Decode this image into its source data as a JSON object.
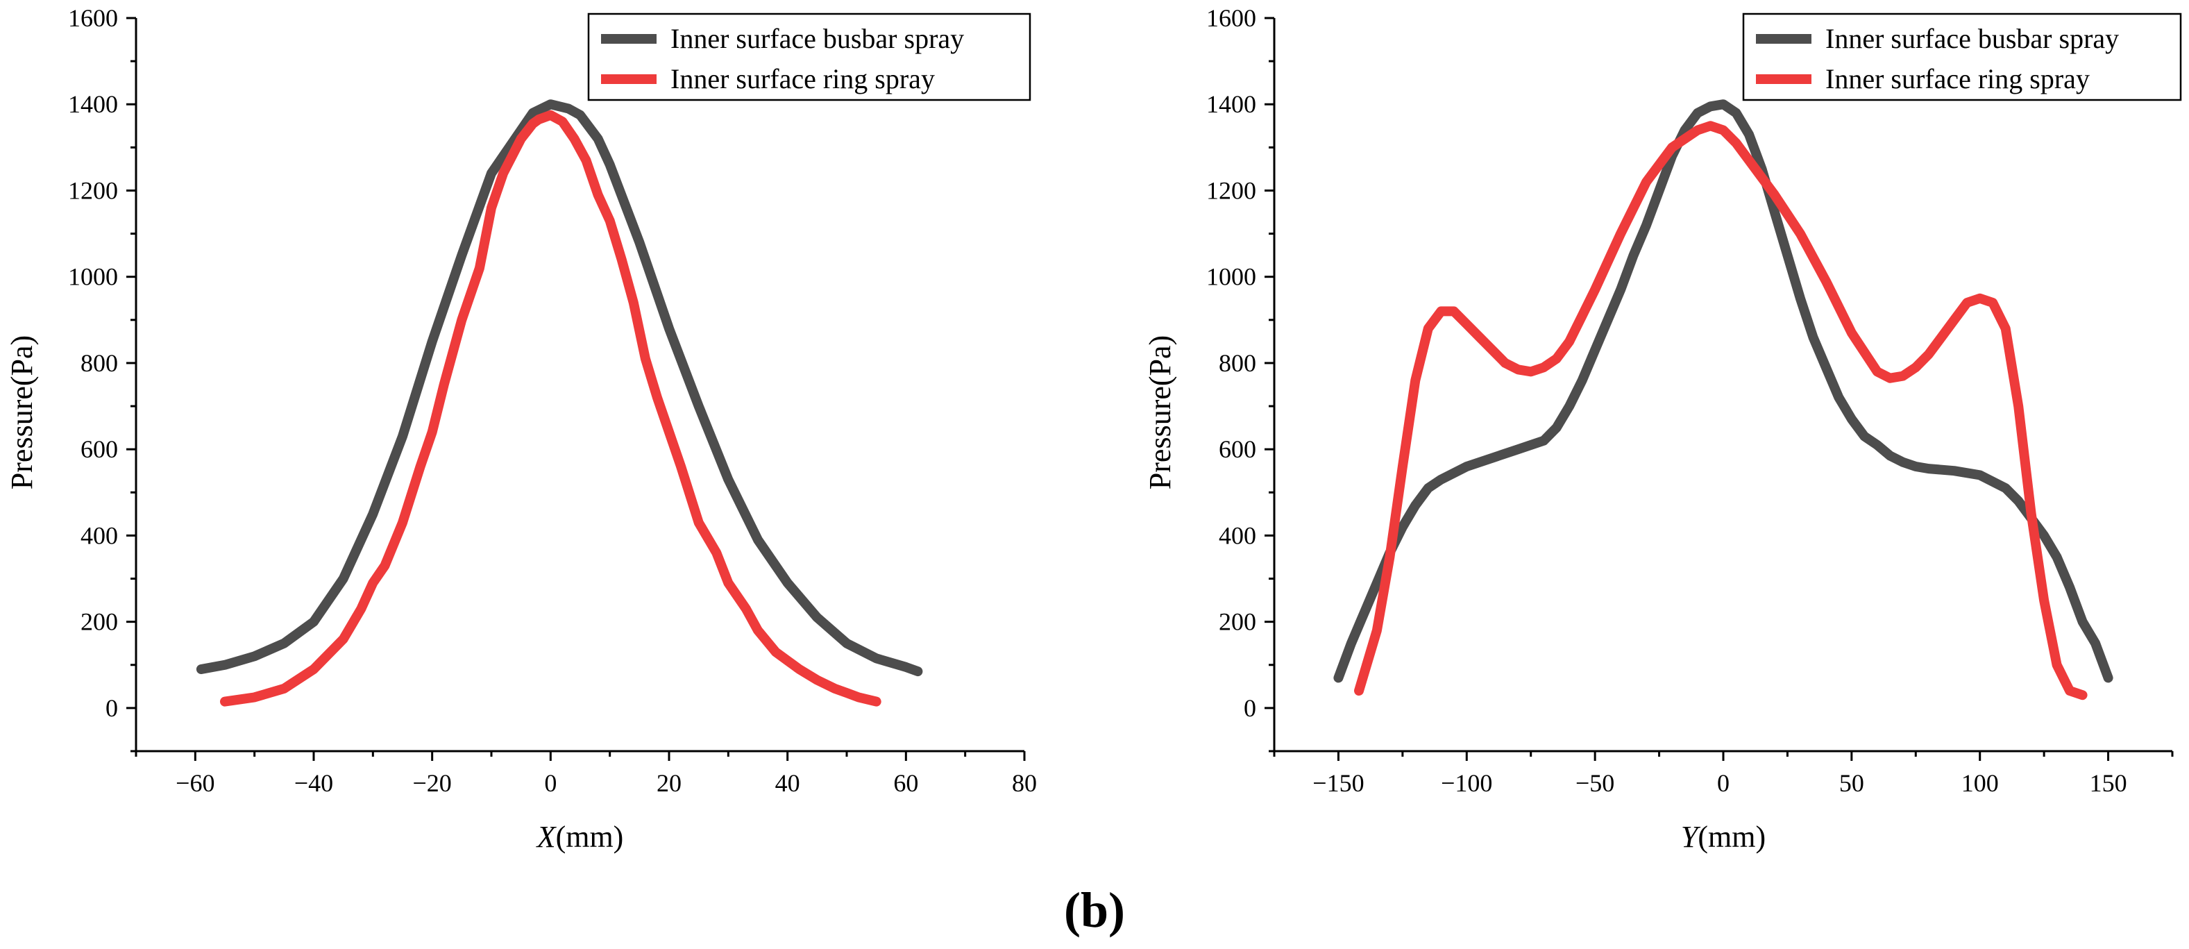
{
  "caption": {
    "open": "(",
    "letter": "b",
    "close": ")"
  },
  "colors": {
    "busbar": "#4d4d4d",
    "ring": "#ee3b3b"
  },
  "chart_data": [
    {
      "type": "line",
      "xlabel_var": "X",
      "xlabel_unit": "(mm)",
      "ylabel": "Pressure(Pa)",
      "xlim": [
        -70,
        80
      ],
      "ylim": [
        -100,
        1600
      ],
      "xticks": [
        -60,
        -40,
        -20,
        0,
        20,
        40,
        60,
        80
      ],
      "xtick_labels": [
        "−60",
        "−40",
        "−20",
        "0",
        "20",
        "40",
        "60",
        "80"
      ],
      "yticks": [
        0,
        200,
        400,
        600,
        800,
        1000,
        1200,
        1400,
        1600
      ],
      "ytick_labels": [
        "0",
        "200",
        "400",
        "600",
        "800",
        "1000",
        "1200",
        "1400",
        "1600"
      ],
      "legend": [
        "Inner surface busbar spray",
        "Inner surface ring spray"
      ],
      "series": [
        {
          "name": "Inner surface busbar spray",
          "x": [
            -59,
            -55,
            -50,
            -45,
            -40,
            -35,
            -30,
            -25,
            -20,
            -15,
            -10,
            -5,
            -3,
            0,
            3,
            5,
            8,
            10,
            15,
            20,
            25,
            30,
            35,
            40,
            45,
            50,
            55,
            60,
            62
          ],
          "y": [
            90,
            100,
            120,
            150,
            200,
            300,
            450,
            630,
            850,
            1050,
            1240,
            1340,
            1380,
            1400,
            1390,
            1375,
            1320,
            1260,
            1080,
            880,
            700,
            530,
            390,
            290,
            210,
            150,
            115,
            95,
            85
          ]
        },
        {
          "name": "Inner surface ring spray",
          "x": [
            -55,
            -50,
            -45,
            -40,
            -35,
            -32,
            -30,
            -28,
            -25,
            -22,
            -20,
            -18,
            -15,
            -12,
            -10,
            -8,
            -5,
            -3,
            -2,
            0,
            2,
            4,
            6,
            8,
            10,
            12,
            14,
            16,
            18,
            20,
            22,
            25,
            28,
            30,
            33,
            35,
            38,
            40,
            42,
            45,
            48,
            50,
            52,
            55
          ],
          "y": [
            15,
            25,
            45,
            90,
            160,
            230,
            290,
            330,
            430,
            560,
            640,
            750,
            900,
            1020,
            1160,
            1240,
            1320,
            1355,
            1365,
            1375,
            1360,
            1320,
            1270,
            1190,
            1130,
            1040,
            940,
            810,
            720,
            640,
            560,
            430,
            360,
            290,
            230,
            180,
            130,
            110,
            90,
            65,
            45,
            35,
            25,
            15
          ]
        }
      ]
    },
    {
      "type": "line",
      "xlabel_var": "Y",
      "xlabel_unit": "(mm)",
      "ylabel": "Pressure(Pa)",
      "xlim": [
        -175,
        175
      ],
      "ylim": [
        -100,
        1600
      ],
      "xticks": [
        -150,
        -100,
        -50,
        0,
        50,
        100,
        150
      ],
      "xtick_labels": [
        "−150",
        "−100",
        "−50",
        "0",
        "50",
        "100",
        "150"
      ],
      "yticks": [
        0,
        200,
        400,
        600,
        800,
        1000,
        1200,
        1400,
        1600
      ],
      "ytick_labels": [
        "0",
        "200",
        "400",
        "600",
        "800",
        "1000",
        "1200",
        "1400",
        "1600"
      ],
      "legend": [
        "Inner surface busbar spray",
        "Inner surface ring spray"
      ],
      "series": [
        {
          "name": "Inner surface busbar spray",
          "x": [
            -150,
            -145,
            -140,
            -135,
            -130,
            -125,
            -120,
            -115,
            -110,
            -100,
            -90,
            -80,
            -70,
            -65,
            -60,
            -55,
            -50,
            -45,
            -40,
            -35,
            -30,
            -25,
            -20,
            -15,
            -10,
            -5,
            0,
            5,
            10,
            15,
            20,
            25,
            30,
            35,
            40,
            45,
            50,
            55,
            60,
            65,
            70,
            75,
            80,
            90,
            100,
            110,
            115,
            120,
            125,
            130,
            135,
            140,
            145,
            150
          ],
          "y": [
            70,
            150,
            220,
            290,
            360,
            420,
            470,
            510,
            530,
            560,
            580,
            600,
            620,
            650,
            700,
            760,
            830,
            900,
            970,
            1050,
            1120,
            1200,
            1280,
            1340,
            1380,
            1395,
            1400,
            1380,
            1330,
            1250,
            1150,
            1050,
            950,
            860,
            790,
            720,
            670,
            630,
            610,
            585,
            570,
            560,
            555,
            550,
            540,
            510,
            480,
            440,
            400,
            350,
            280,
            200,
            150,
            70
          ]
        },
        {
          "name": "Inner surface ring spray",
          "x": [
            -142,
            -135,
            -130,
            -125,
            -120,
            -115,
            -110,
            -105,
            -100,
            -95,
            -90,
            -85,
            -80,
            -75,
            -70,
            -65,
            -60,
            -55,
            -50,
            -40,
            -30,
            -20,
            -10,
            -5,
            0,
            5,
            10,
            20,
            30,
            40,
            50,
            60,
            65,
            70,
            75,
            80,
            85,
            90,
            95,
            100,
            105,
            110,
            115,
            120,
            125,
            130,
            135,
            140
          ],
          "y": [
            40,
            180,
            350,
            560,
            760,
            880,
            920,
            920,
            890,
            860,
            830,
            800,
            785,
            780,
            790,
            810,
            850,
            910,
            970,
            1100,
            1220,
            1300,
            1340,
            1350,
            1340,
            1310,
            1270,
            1190,
            1100,
            990,
            870,
            780,
            765,
            770,
            790,
            820,
            860,
            900,
            940,
            950,
            940,
            880,
            700,
            450,
            250,
            100,
            40,
            30
          ]
        }
      ]
    }
  ]
}
